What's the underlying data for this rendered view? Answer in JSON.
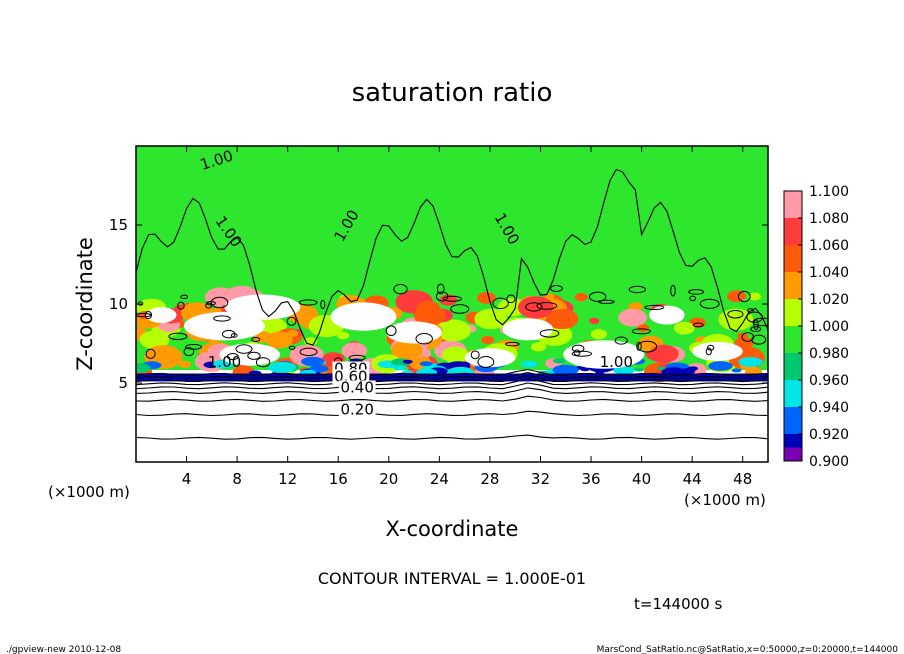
{
  "chart_data": {
    "type": "heatmap",
    "title": "saturation ratio",
    "xlabel": "X-coordinate",
    "ylabel": "Z-coordinate",
    "x_unit": "(×1000 m)",
    "y_unit": "(×1000 m)",
    "xlim": [
      0,
      50
    ],
    "ylim": [
      0,
      20
    ],
    "x_ticks": [
      "4",
      "8",
      "12",
      "16",
      "20",
      "24",
      "28",
      "32",
      "36",
      "40",
      "44",
      "48"
    ],
    "y_ticks": [
      "5",
      "10",
      "15"
    ],
    "colorbar": {
      "levels": [
        "1.100",
        "1.080",
        "1.060",
        "1.040",
        "1.020",
        "1.000",
        "0.980",
        "0.960",
        "0.940",
        "0.920",
        "0.900"
      ],
      "colors": [
        "#ff9aa6",
        "#ff3b3b",
        "#ff5a0a",
        "#ff9a00",
        "#b6ff00",
        "#2ee62e",
        "#00c86e",
        "#00e6e6",
        "#0064ff",
        "#0000b4",
        "#7a00b4"
      ]
    },
    "contour_labels": [
      "1.00",
      "1.00",
      "1.00",
      "1.00",
      "1.00",
      "1.00",
      "0.80",
      "0.60",
      "0.40",
      "0.20"
    ],
    "contour_interval": "CONTOUR INTERVAL = 1.000E-01",
    "time_label": "t=144000 s",
    "footer_left": "./gpview-new   2010-12-08",
    "footer_right": "MarsCond_SatRatio.nc@SatRatio,x=0:50000,z=0:20000,t=144000"
  }
}
